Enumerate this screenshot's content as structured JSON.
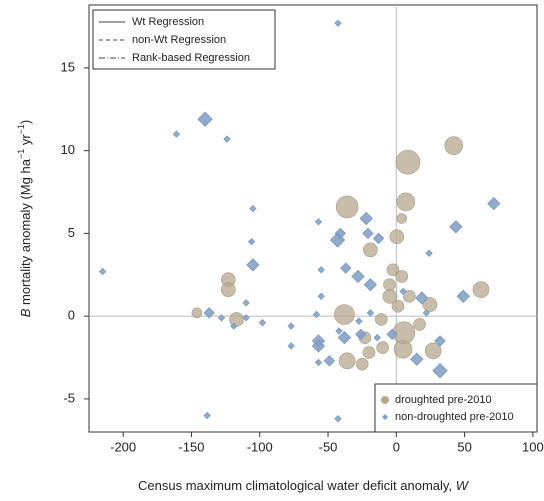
{
  "chart_data": {
    "type": "scatter",
    "x_label": [
      {
        "text": "Census maximum climatological water deficit anomaly, "
      },
      {
        "text": "W",
        "italic": true
      }
    ],
    "y_label": [
      {
        "text": "B",
        "italic": true
      },
      {
        "text": " mortality anomaly (Mg ha"
      },
      {
        "text": "−1",
        "sup": true
      },
      {
        "text": " yr"
      },
      {
        "text": "−1",
        "sup": true
      },
      {
        "text": ")"
      }
    ],
    "xlim": [
      -225,
      103
    ],
    "ylim": [
      -7,
      18.8
    ],
    "xticks": [
      -200,
      -150,
      -100,
      -50,
      0,
      50,
      100
    ],
    "yticks": [
      -5,
      0,
      5,
      10,
      15
    ],
    "vline": 0,
    "hline": 0,
    "legend_loc": "lower right",
    "regression_legend": {
      "loc": "upper left",
      "entries": [
        {
          "name": "Wt Regression",
          "dash": "solid"
        },
        {
          "name": "non-Wt Regression",
          "dash": "dashed"
        },
        {
          "name": "Rank-based Regression",
          "dash": "dashdot"
        }
      ]
    },
    "series": [
      {
        "name": "droughted pre-2010",
        "color": "#b5a68f",
        "marker": "circle",
        "x": [
          8.5,
          42,
          7,
          -36,
          4,
          0.4,
          -19,
          -2.5,
          4,
          -123,
          -123,
          -146,
          -117,
          -38,
          -4.7,
          -5,
          9.5,
          1.2,
          24.6,
          62,
          -11,
          5.5,
          4.9,
          -20,
          -10,
          -23,
          27,
          -36,
          -25,
          17
        ],
        "values": [
          9.3,
          10.3,
          6.9,
          6.6,
          5.9,
          4.8,
          4.0,
          2.8,
          2.4,
          2.2,
          1.6,
          0.2,
          -0.2,
          0.1,
          1.2,
          1.9,
          1.2,
          0.6,
          0.7,
          1.6,
          -0.2,
          -1.0,
          -2.0,
          -2.2,
          -1.9,
          -1.3,
          -2.1,
          -2.7,
          -2.9,
          -0.5
        ],
        "sizes": [
          12,
          9,
          9,
          11,
          5,
          7,
          7,
          6,
          6,
          7,
          7,
          5,
          7,
          10,
          7,
          6,
          6,
          6,
          7,
          8,
          6,
          11,
          9,
          6,
          6,
          6,
          8,
          8,
          6,
          6
        ]
      },
      {
        "name": "non-droughted pre-2010",
        "color": "#7f9cc2",
        "marker": "diamond",
        "x": [
          -42.7,
          -140,
          -161,
          -124,
          -105,
          -57,
          71.4,
          43.6,
          -22,
          -43,
          -41,
          -20.8,
          -106,
          -105,
          -13,
          -215,
          -55,
          -28,
          -37,
          -19,
          24,
          -55,
          18.7,
          49,
          -110,
          5,
          -137,
          -110,
          -128,
          -58.5,
          -98,
          -119,
          -77,
          -27.4,
          -19,
          22,
          -42,
          -57,
          -57,
          -38,
          -26,
          -3,
          32,
          -77,
          -14,
          -49,
          15,
          32,
          -57,
          -138.5,
          -42.7,
          98
        ],
        "values": [
          17.7,
          11.9,
          11.0,
          10.7,
          6.5,
          5.7,
          6.8,
          5.4,
          5.9,
          4.6,
          5.0,
          5.0,
          4.5,
          3.1,
          4.7,
          2.7,
          2.8,
          2.4,
          2.9,
          1.9,
          3.8,
          1.2,
          1.1,
          1.2,
          0.8,
          1.5,
          0.2,
          -0.1,
          -0.1,
          0.1,
          -0.4,
          -0.6,
          -0.6,
          -0.3,
          0.2,
          0.2,
          -0.9,
          -1.5,
          -1.8,
          -1.3,
          -1.1,
          -1.1,
          -1.5,
          -1.8,
          -1.3,
          -2.7,
          -2.6,
          -3.3,
          -2.8,
          -6.0,
          -6.2,
          -4.6
        ],
        "sizes": [
          3,
          7,
          3,
          3,
          3,
          3,
          6,
          6,
          6,
          7,
          5,
          5,
          3,
          6,
          5,
          3,
          3,
          6,
          5,
          6,
          3,
          3,
          6,
          6,
          3,
          3,
          5,
          3,
          3,
          3,
          3,
          3,
          3,
          3,
          3,
          3,
          3,
          6,
          6,
          6,
          5,
          5,
          5,
          3,
          3,
          5,
          6,
          7,
          3,
          3,
          3,
          7
        ]
      }
    ]
  }
}
